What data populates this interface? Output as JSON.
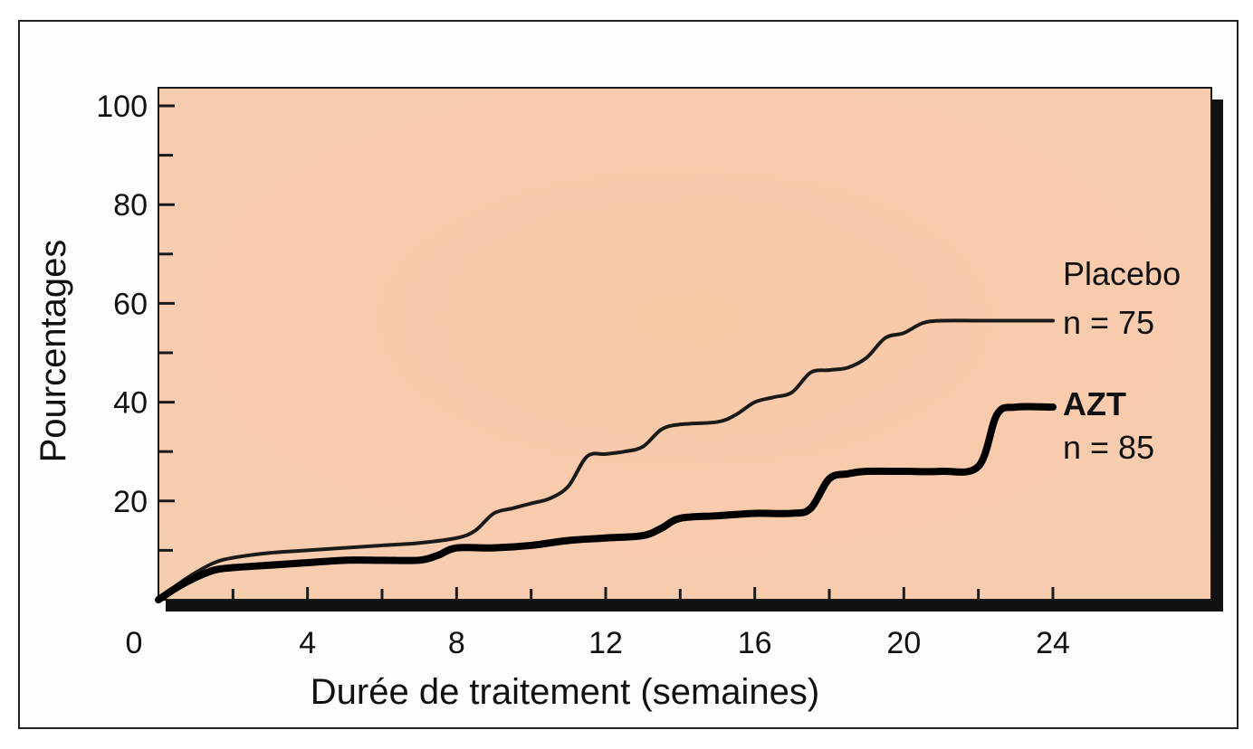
{
  "chart_data": {
    "type": "line",
    "xlabel": "Durée de traitement (semaines)",
    "ylabel": "Pourcentages",
    "xlim": [
      0,
      24
    ],
    "ylim": [
      0,
      100
    ],
    "x_ticks": [
      "0",
      "4",
      "8",
      "12",
      "16",
      "20",
      "24"
    ],
    "y_ticks": [
      "20",
      "40",
      "60",
      "80",
      "100"
    ],
    "grid": false,
    "series": [
      {
        "name": "Placebo",
        "n_label": "n = 75",
        "color": "#1a1a1a",
        "x": [
          0,
          0.5,
          1,
          1.5,
          2,
          3,
          4,
          5,
          6,
          7,
          8,
          8.5,
          9,
          9.5,
          10,
          10.5,
          11,
          11.5,
          12,
          12.5,
          13,
          13.5,
          14,
          15,
          15.5,
          16,
          16.5,
          17,
          17.5,
          18,
          18.5,
          19,
          19.5,
          20,
          20.5,
          21,
          22,
          23,
          24
        ],
        "y": [
          0,
          3,
          5.5,
          7.5,
          8.5,
          9.5,
          10,
          10.5,
          11,
          11.5,
          12.5,
          14,
          17.5,
          18.5,
          19.5,
          20.5,
          23,
          29,
          29.5,
          30,
          31,
          34.5,
          35.5,
          36,
          37.5,
          40,
          41,
          42,
          46,
          46.5,
          47,
          49,
          53,
          54,
          56,
          56.5,
          56.5,
          56.5,
          56.5
        ]
      },
      {
        "name": "AZT",
        "n_label": "n = 85",
        "color": "#000000",
        "x": [
          0,
          0.5,
          1,
          1.5,
          2,
          3,
          4,
          5,
          6,
          7,
          7.5,
          8,
          9,
          10,
          11,
          12,
          13,
          13.5,
          14,
          15,
          16,
          17,
          17.5,
          18,
          18.5,
          19,
          20,
          21,
          22,
          22.5,
          23,
          24
        ],
        "y": [
          0,
          2.5,
          4.5,
          6,
          6.5,
          7,
          7.5,
          8,
          8,
          8,
          9,
          10.5,
          10.5,
          11,
          12,
          12.5,
          13,
          14.5,
          16.5,
          17,
          17.5,
          17.5,
          18.5,
          24.5,
          25.5,
          26,
          26,
          26,
          27,
          37.5,
          39,
          39
        ]
      }
    ]
  }
}
